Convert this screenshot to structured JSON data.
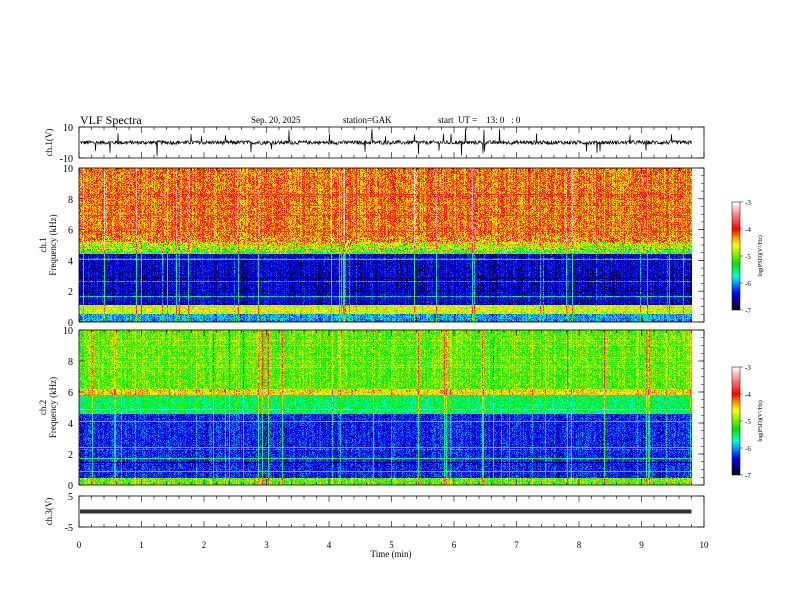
{
  "header": {
    "title": "VLF  Spectra",
    "date": "Sep. 20, 2025",
    "station": "station=GAK",
    "start": "start  UT =    13: 0   : 0"
  },
  "chart_data": [
    {
      "type": "line",
      "name": "ch1 waveform",
      "ylabel": "ch.1(V)",
      "ylim": [
        -10,
        10
      ],
      "yticks": [
        "10",
        "-10"
      ],
      "xlim": [
        0,
        10
      ],
      "data_end_min": 9.8,
      "baseline": 0,
      "spike_range": [
        -9,
        9
      ]
    },
    {
      "type": "heatmap",
      "name": "ch1 spectrogram",
      "ylabel": "ch.1\nFrequency  (kHz)",
      "ylabel_line1": "ch.1",
      "ylabel_line2": "Frequency  (kHz)",
      "ylim": [
        0,
        10
      ],
      "yticks": [
        "0",
        "2",
        "4",
        "6",
        "8",
        "10"
      ],
      "colorbar": {
        "label": "log(PSD)(V²/Hz)",
        "range": [
          -7,
          -3
        ],
        "ticks": [
          "-3",
          "-4",
          "-5",
          "-6",
          "-7"
        ]
      },
      "bands": [
        {
          "f_range": [
            5,
            10
          ],
          "level": -4.2
        },
        {
          "f_range": [
            4.5,
            5
          ],
          "level": -5.2
        },
        {
          "f_range": [
            1,
            4.5
          ],
          "level": -6.5
        },
        {
          "f_range": [
            0,
            1
          ],
          "level": -4.8
        }
      ]
    },
    {
      "type": "heatmap",
      "name": "ch2 spectrogram",
      "ylabel_line1": "ch.2",
      "ylabel_line2": "Frequency  (kHz)",
      "ylim": [
        0,
        10
      ],
      "yticks": [
        "0",
        "2",
        "4",
        "6",
        "8",
        "10"
      ],
      "colorbar": {
        "label": "log(PSD)(V²/Hz)",
        "range": [
          -7,
          -3
        ],
        "ticks": [
          "-3",
          "-4",
          "-5",
          "-6",
          "-7"
        ]
      },
      "bands": [
        {
          "f_range": [
            6,
            10
          ],
          "level": -5.0
        },
        {
          "f_range": [
            4.5,
            6
          ],
          "level": -5.5
        },
        {
          "f_range": [
            0,
            4.5
          ],
          "level": -6.3
        }
      ]
    },
    {
      "type": "line",
      "name": "ch3 waveform",
      "ylabel": "ch.3(V)",
      "ylim": [
        -5,
        5
      ],
      "yticks": [
        "5",
        "-5"
      ],
      "value": 0,
      "data_end_min": 9.8
    }
  ],
  "xaxis": {
    "label": "Time  (min)",
    "ticks": [
      "0",
      "1",
      "2",
      "3",
      "4",
      "5",
      "6",
      "7",
      "8",
      "9",
      "10"
    ],
    "range": [
      0,
      10
    ]
  }
}
